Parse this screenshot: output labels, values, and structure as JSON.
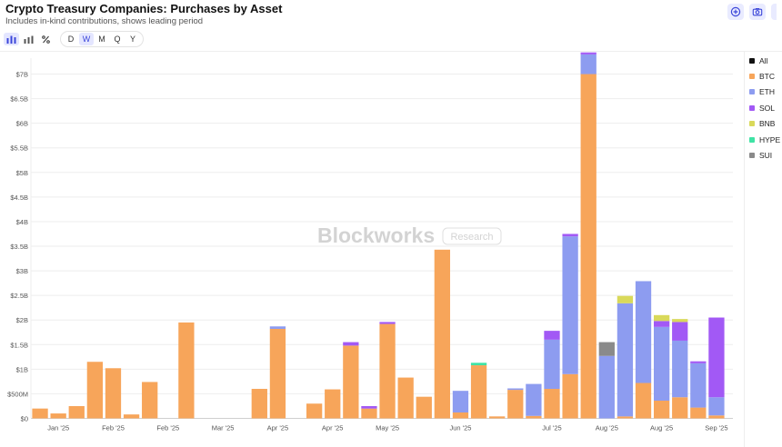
{
  "header": {
    "title": "Crypto Treasury Companies: Purchases by Asset",
    "subtitle": "Includes in-kind contributions, shows leading period"
  },
  "actions": {
    "add_icon": "plus-circle-icon",
    "camera_icon": "camera-icon"
  },
  "toolbar": {
    "chart_types": [
      "bar-chart-icon",
      "stacked-bar-icon",
      "percent-icon"
    ],
    "periods": [
      "D",
      "W",
      "M",
      "Q",
      "Y"
    ],
    "active_period": "W"
  },
  "watermark": {
    "brand": "Blockworks",
    "tag": "Research"
  },
  "colors": {
    "BTC": "#f7a55a",
    "ETH": "#8d9cf0",
    "SOL": "#a259f5",
    "BNB": "#d9d95a",
    "HYPE": "#3fe3a5",
    "SUI": "#8a8a8a",
    "All": "#111111"
  },
  "legend": [
    {
      "label": "All",
      "color": "#111111"
    },
    {
      "label": "BTC",
      "color": "#f7a55a"
    },
    {
      "label": "ETH",
      "color": "#8d9cf0"
    },
    {
      "label": "SOL",
      "color": "#a259f5"
    },
    {
      "label": "BNB",
      "color": "#d9d95a"
    },
    {
      "label": "HYPE",
      "color": "#3fe3a5"
    },
    {
      "label": "SUI",
      "color": "#8a8a8a"
    }
  ],
  "chart_data": {
    "type": "bar",
    "stacked": true,
    "title": "Crypto Treasury Companies: Purchases by Asset",
    "ylim": [
      0,
      7.25
    ],
    "yticks": [
      {
        "v": 0,
        "label": "$0"
      },
      {
        "v": 0.5,
        "label": "$500M"
      },
      {
        "v": 1,
        "label": "$1B"
      },
      {
        "v": 1.5,
        "label": "$1.5B"
      },
      {
        "v": 2,
        "label": "$2B"
      },
      {
        "v": 2.5,
        "label": "$2.5B"
      },
      {
        "v": 3,
        "label": "$3B"
      },
      {
        "v": 3.5,
        "label": "$3.5B"
      },
      {
        "v": 4,
        "label": "$4B"
      },
      {
        "v": 4.5,
        "label": "$4.5B"
      },
      {
        "v": 5,
        "label": "$5B"
      },
      {
        "v": 5.5,
        "label": "$5.5B"
      },
      {
        "v": 6,
        "label": "$6B"
      },
      {
        "v": 6.5,
        "label": "$6.5B"
      },
      {
        "v": 7,
        "label": "$7B"
      }
    ],
    "xticks": [
      {
        "label": "Jan '25",
        "at": 1.5
      },
      {
        "label": "Feb '25",
        "at": 4.5
      },
      {
        "label": "Feb '25",
        "at": 7.5
      },
      {
        "label": "Mar '25",
        "at": 10.5
      },
      {
        "label": "Apr '25",
        "at": 13.5
      },
      {
        "label": "Apr '25",
        "at": 16.5
      },
      {
        "label": "May '25",
        "at": 19.5
      },
      {
        "label": "Jun '25",
        "at": 23.5
      },
      {
        "label": "Jul '25",
        "at": 28.5
      },
      {
        "label": "Aug '25",
        "at": 31.5
      },
      {
        "label": "Aug '25",
        "at": 34.5
      },
      {
        "label": "Sep '25",
        "at": 37.5
      }
    ],
    "series_names": [
      "BTC",
      "ETH",
      "SOL",
      "BNB",
      "HYPE",
      "SUI"
    ],
    "bars": [
      {
        "BTC": 0.2
      },
      {
        "BTC": 0.1
      },
      {
        "BTC": 0.25
      },
      {
        "BTC": 1.15
      },
      {
        "BTC": 1.02
      },
      {
        "BTC": 0.08
      },
      {
        "BTC": 0.74
      },
      {},
      {
        "BTC": 1.95
      },
      {},
      {},
      {},
      {
        "BTC": 0.6
      },
      {
        "BTC": 1.82,
        "ETH": 0.05
      },
      {},
      {
        "BTC": 0.3
      },
      {
        "BTC": 0.59
      },
      {
        "BTC": 1.48,
        "SOL": 0.07
      },
      {
        "BTC": 0.2,
        "SOL": 0.05
      },
      {
        "BTC": 1.92,
        "SOL": 0.04
      },
      {
        "BTC": 0.83
      },
      {
        "BTC": 0.44
      },
      {
        "BTC": 3.43
      },
      {
        "BTC": 0.12,
        "ETH": 0.44
      },
      {
        "BTC": 1.08,
        "HYPE": 0.05
      },
      {
        "BTC": 0.04
      },
      {
        "BTC": 0.58,
        "ETH": 0.03
      },
      {
        "BTC": 0.05,
        "ETH": 0.65
      },
      {
        "BTC": 0.6,
        "ETH": 1.0,
        "SOL": 0.18
      },
      {
        "BTC": 0.9,
        "ETH": 2.8,
        "SOL": 0.05
      },
      {
        "BTC": 7.0,
        "ETH": 0.4,
        "SOL": 0.04
      },
      {
        "ETH": 1.27,
        "SUI": 0.28
      },
      {
        "BTC": 0.04,
        "ETH": 2.3,
        "BNB": 0.15
      },
      {
        "BTC": 0.72,
        "ETH": 2.07
      },
      {
        "BTC": 0.36,
        "ETH": 1.5,
        "SOL": 0.12,
        "BNB": 0.12
      },
      {
        "BTC": 0.43,
        "ETH": 1.15,
        "SOL": 0.38,
        "BNB": 0.06
      },
      {
        "BTC": 0.22,
        "ETH": 0.9,
        "SOL": 0.04
      },
      {
        "BTC": 0.06,
        "ETH": 0.37,
        "SOL": 1.62
      }
    ]
  }
}
